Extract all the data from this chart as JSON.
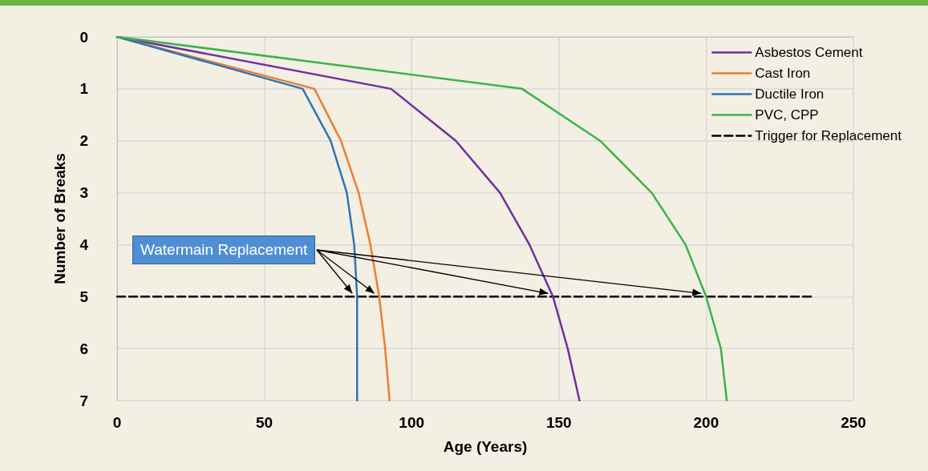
{
  "chart_data": {
    "type": "line",
    "xlabel": "Age (Years)",
    "ylabel": "Number of Breaks",
    "annotations": [
      {
        "text": "Watermain Replacement",
        "x": 81.5,
        "y": 5
      }
    ],
    "series": [
      {
        "name": "Asbestos Cement",
        "color": "#7030a0",
        "x": [
          0,
          93,
          115,
          130,
          140,
          148,
          153,
          157
        ],
        "values": [
          0,
          1,
          2,
          3,
          4,
          5,
          6,
          7
        ]
      },
      {
        "name": "Cast Iron",
        "color": "#ed7d31",
        "x": [
          0,
          67,
          76,
          82,
          86,
          89,
          91,
          92.5
        ],
        "values": [
          0,
          1,
          2,
          3,
          4,
          5,
          6,
          7
        ]
      },
      {
        "name": "Ductile Iron",
        "color": "#2e75b6",
        "x": [
          0,
          63,
          72.5,
          78,
          80.5,
          81.5,
          81.5
        ],
        "values": [
          0,
          1,
          2,
          3,
          4,
          5,
          7
        ]
      },
      {
        "name": "PVC, CPP",
        "color": "#3cb44b",
        "x": [
          0,
          137.5,
          164,
          181.5,
          193,
          200,
          205,
          207
        ],
        "values": [
          0,
          1,
          2,
          3,
          4,
          5,
          6,
          7
        ]
      },
      {
        "name": "Trigger for Replacement",
        "color": "#000000",
        "line_style": "dashed",
        "x": [
          0,
          236.5
        ],
        "values": [
          5,
          5
        ]
      }
    ],
    "xlim": [
      0,
      250
    ],
    "xticks": [
      0,
      50,
      100,
      150,
      200,
      250
    ],
    "ylim": [
      7,
      0
    ],
    "yticks": [
      0,
      1,
      2,
      3,
      4,
      5,
      6,
      7
    ],
    "grid": true,
    "legend": "top right",
    "marker": "none",
    "line_style": "solid"
  }
}
